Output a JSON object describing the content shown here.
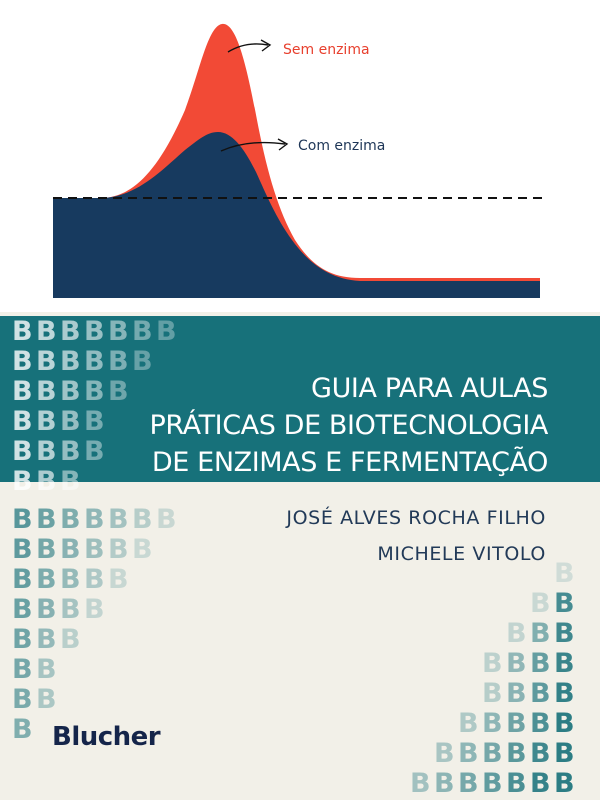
{
  "chart": {
    "label_without_enzyme": "Sem enzima",
    "label_with_enzyme": "Com enzima",
    "colors": {
      "without_enzyme": "#f24a36",
      "with_enzyme": "#173a5f",
      "dashed_line": "#111111"
    }
  },
  "title_lines": [
    "GUIA PARA AULAS",
    "PRÁTICAS DE BIOTECNOLOGIA",
    "DE ENZIMAS E FERMENTAÇÃO"
  ],
  "authors": [
    "JOSÉ ALVES ROCHA FILHO",
    "MICHELE VITOLO"
  ],
  "publisher": "Blucher",
  "pattern": {
    "letter": "B",
    "colors": {
      "band": "#17717a",
      "background": "#f2f0e8"
    }
  }
}
